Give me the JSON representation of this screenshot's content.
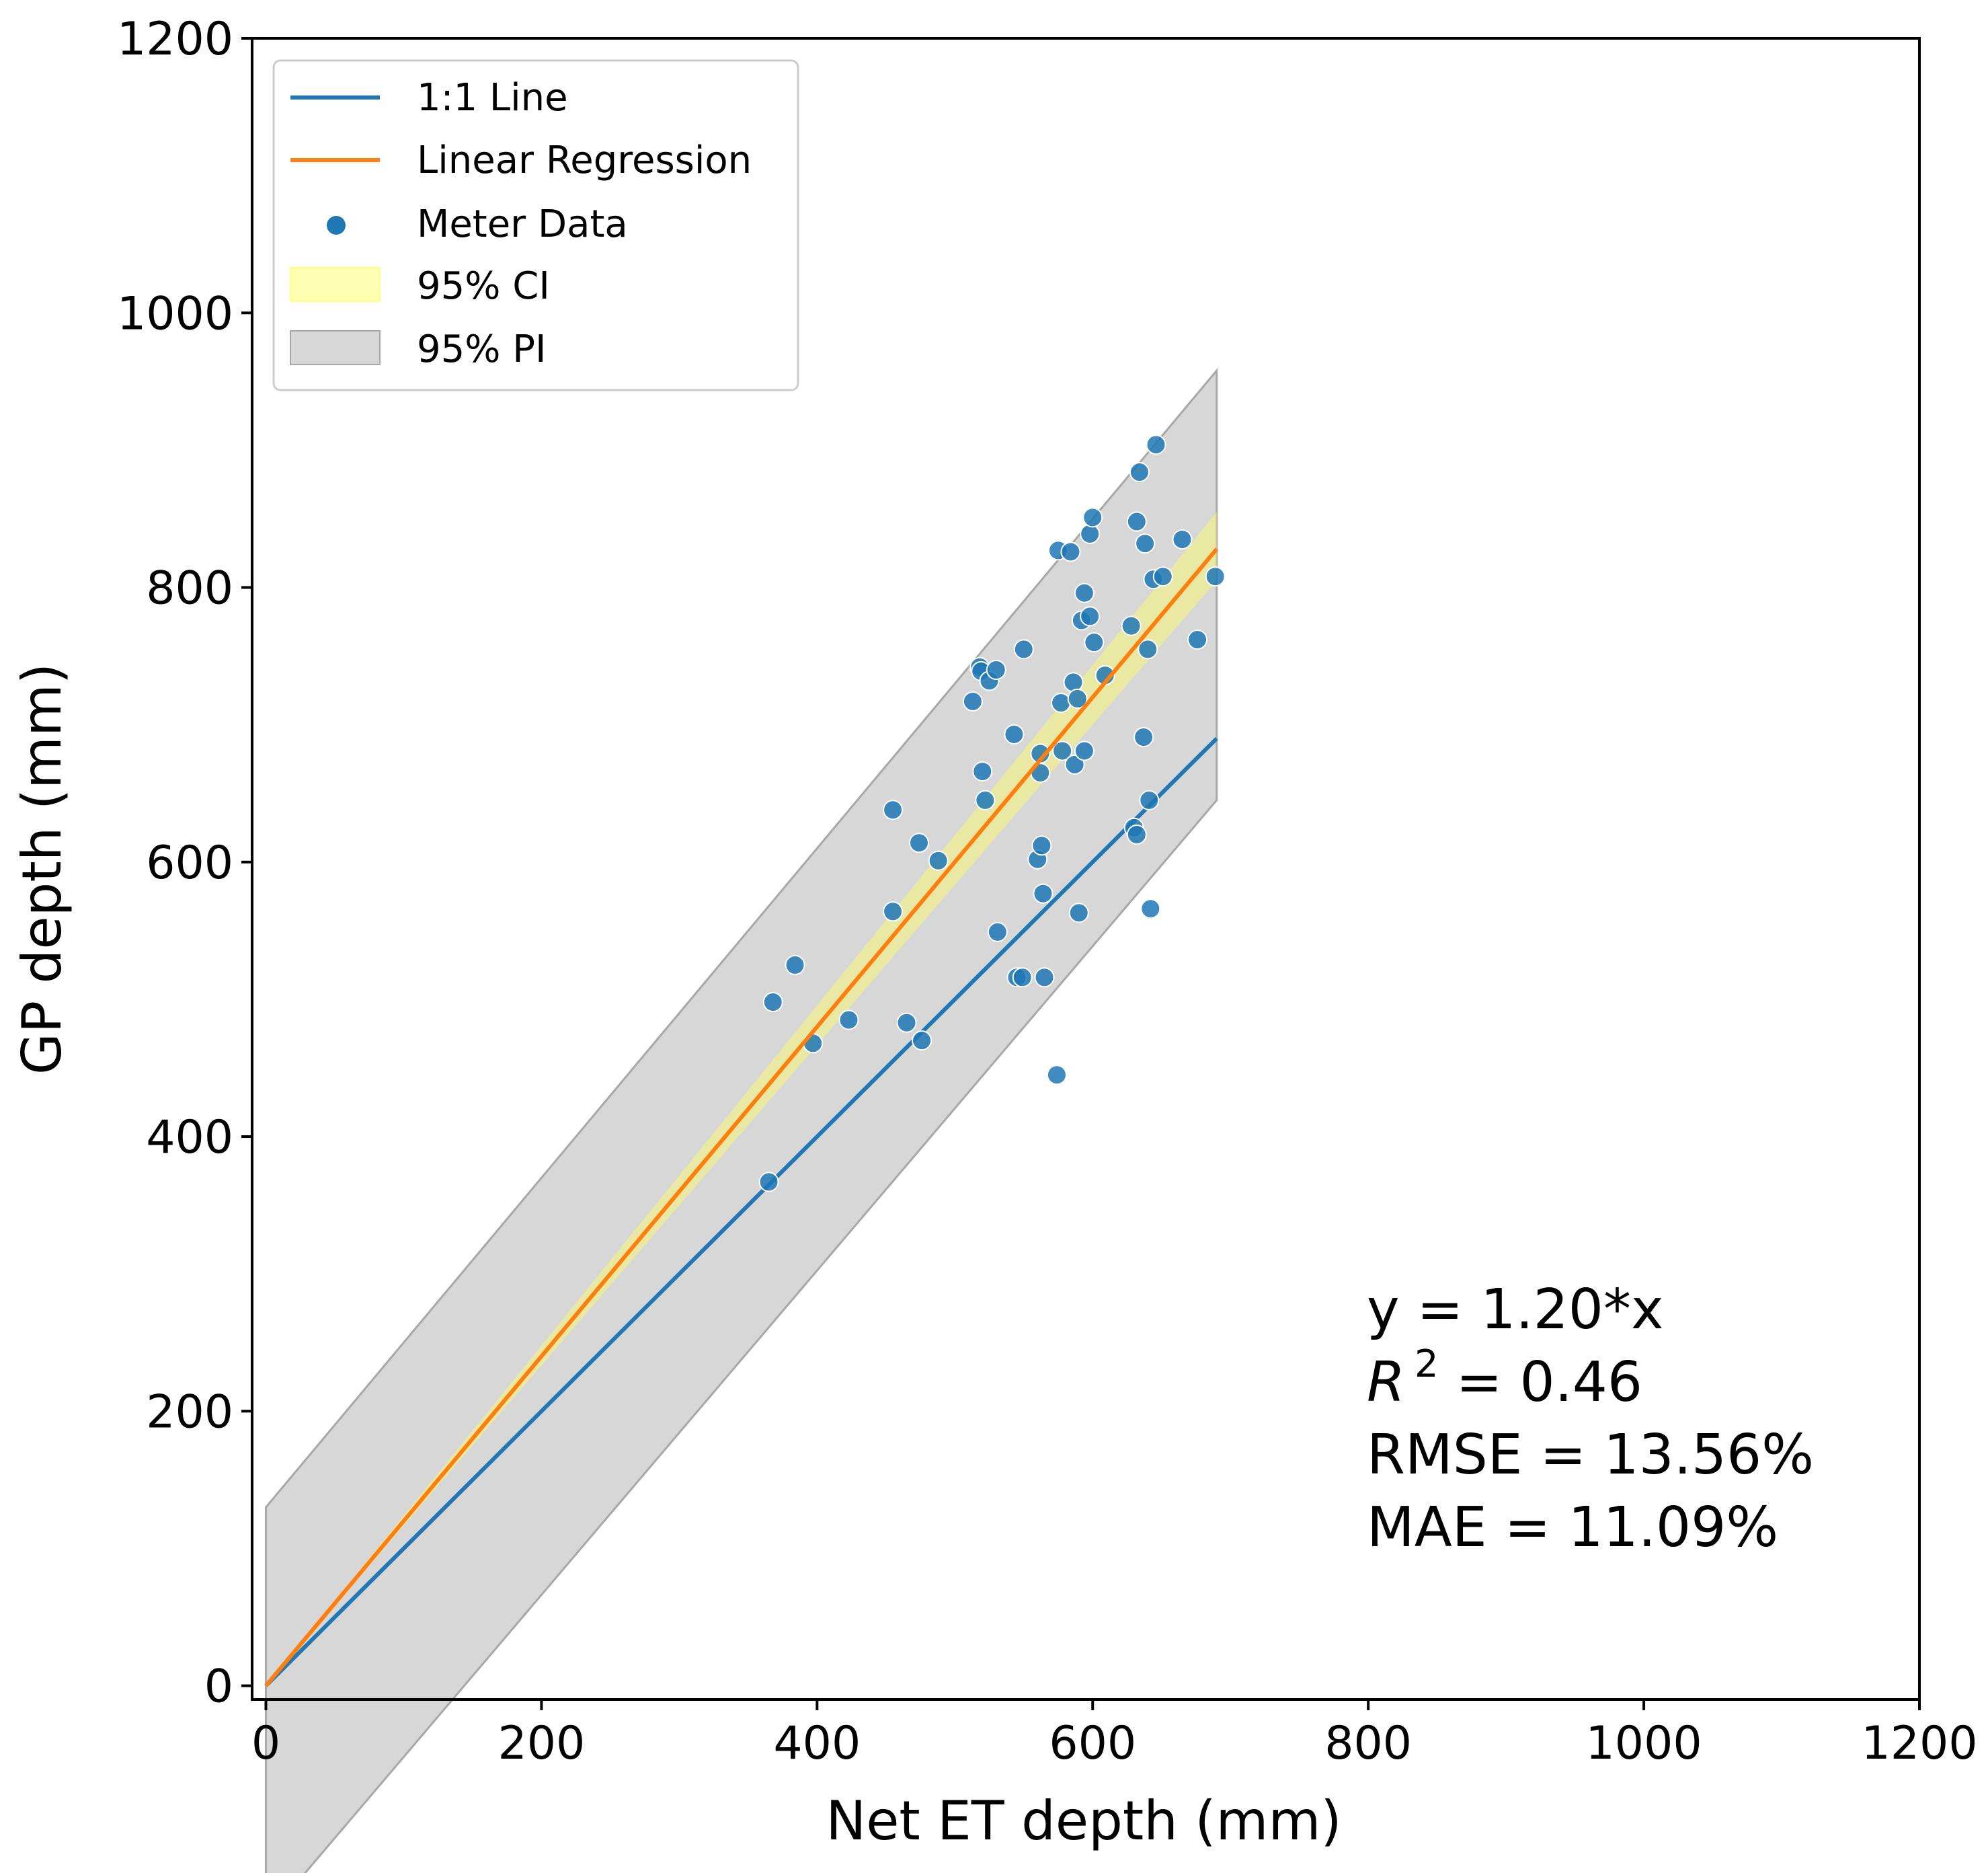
{
  "chart_data": {
    "type": "scatter",
    "xlabel": "Net ET depth (mm)",
    "ylabel": "GP depth (mm)",
    "xlim": [
      -10,
      1200
    ],
    "ylim": [
      -10,
      1200
    ],
    "xticks": [
      "0",
      "200",
      "400",
      "600",
      "800",
      "1000",
      "1200"
    ],
    "yticks": [
      "0",
      "200",
      "400",
      "600",
      "800",
      "1000",
      "1200"
    ],
    "grid": false,
    "legend_position": "top-left",
    "legend": {
      "one_to_one": "1:1 Line",
      "regression": "Linear Regression",
      "meter": "Meter Data",
      "ci": "95% CI",
      "pi": "95% PI"
    },
    "colors": {
      "one_to_one": "#1f77b4",
      "regression": "#ff7f0e",
      "points": "#1f77b4",
      "ci_fill": "#ffff66",
      "pi_fill": "#b0b0b0"
    },
    "annotation": {
      "equation": "y = 1.20*x",
      "r2_symbol": "R",
      "r2_exp": "2",
      "r2_value": " = 0.46",
      "rmse": "RMSE = 13.56%",
      "mae": "MAE = 11.09%"
    },
    "regression": {
      "slope": 1.2,
      "x_range": [
        0,
        690
      ]
    },
    "one_to_one": {
      "x_range": [
        0,
        690
      ]
    },
    "ci_band": {
      "x": [
        0,
        690
      ],
      "lower": [
        0,
        805
      ],
      "upper": [
        0,
        855
      ]
    },
    "pi_band": {
      "x": [
        0,
        690
      ],
      "lower": [
        -170,
        645
      ],
      "upper": [
        130,
        958
      ]
    },
    "points": [
      [
        365,
        367
      ],
      [
        368,
        498
      ],
      [
        384,
        525
      ],
      [
        397,
        468
      ],
      [
        423,
        485
      ],
      [
        455,
        638
      ],
      [
        455,
        564
      ],
      [
        465,
        483
      ],
      [
        474,
        614
      ],
      [
        476,
        470
      ],
      [
        488,
        601
      ],
      [
        513,
        717
      ],
      [
        518,
        742
      ],
      [
        519,
        739
      ],
      [
        520,
        666
      ],
      [
        522,
        645
      ],
      [
        525,
        732
      ],
      [
        530,
        740
      ],
      [
        531,
        549
      ],
      [
        543,
        693
      ],
      [
        545,
        516
      ],
      [
        549,
        516
      ],
      [
        550,
        755
      ],
      [
        565,
        516
      ],
      [
        560,
        602
      ],
      [
        562,
        679
      ],
      [
        562,
        665
      ],
      [
        563,
        612
      ],
      [
        564,
        577
      ],
      [
        575,
        827
      ],
      [
        574,
        445
      ],
      [
        577,
        716
      ],
      [
        578,
        681
      ],
      [
        584,
        826
      ],
      [
        586,
        731
      ],
      [
        587,
        671
      ],
      [
        589,
        719
      ],
      [
        590,
        563
      ],
      [
        592,
        776
      ],
      [
        594,
        796
      ],
      [
        594,
        681
      ],
      [
        598,
        779
      ],
      [
        598,
        839
      ],
      [
        600,
        851
      ],
      [
        601,
        760
      ],
      [
        609,
        736
      ],
      [
        628,
        772
      ],
      [
        630,
        625
      ],
      [
        632,
        848
      ],
      [
        632,
        620
      ],
      [
        634,
        884
      ],
      [
        637,
        691
      ],
      [
        638,
        832
      ],
      [
        640,
        755
      ],
      [
        641,
        645
      ],
      [
        642,
        566
      ],
      [
        644,
        806
      ],
      [
        646,
        904
      ],
      [
        651,
        808
      ],
      [
        665,
        835
      ],
      [
        676,
        762
      ],
      [
        689,
        808
      ]
    ]
  }
}
